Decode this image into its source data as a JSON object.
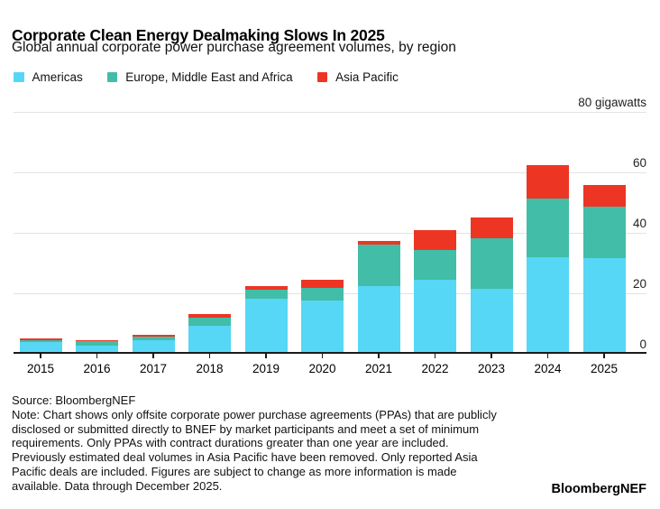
{
  "header": {
    "title": "Corporate Clean Energy Dealmaking Slows In 2025",
    "subtitle": "Global annual corporate power purchase agreement volumes, by region"
  },
  "colors": {
    "americas": "#56D7F5",
    "emea": "#42BDA7",
    "asia_pacific": "#ED3524",
    "gridline": "#e3e3e3",
    "axis": "#1a1a1a"
  },
  "legend": [
    {
      "label": "Americas",
      "color": "#56D7F5"
    },
    {
      "label": "Europe, Middle East and Africa",
      "color": "#42BDA7"
    },
    {
      "label": "Asia Pacific",
      "color": "#ED3524"
    }
  ],
  "chart_data": {
    "type": "bar",
    "stacked": true,
    "unit": "gigawatts",
    "title": "Corporate Clean Energy Dealmaking Slows In 2025",
    "xlabel": "",
    "ylabel": "gigawatts",
    "ylim": [
      0,
      80
    ],
    "grid": true,
    "legend_position": "top",
    "categories": [
      "2015",
      "2016",
      "2017",
      "2018",
      "2019",
      "2020",
      "2021",
      "2022",
      "2023",
      "2024",
      "2025"
    ],
    "series": [
      {
        "name": "Americas",
        "color": "#56D7F5",
        "values": [
          3.9,
          2.7,
          4.6,
          9.3,
          18.3,
          17.7,
          22.5,
          24.4,
          21.5,
          32.0,
          31.7
        ]
      },
      {
        "name": "Europe, Middle East and Africa",
        "color": "#42BDA7",
        "values": [
          0.7,
          1.5,
          1.1,
          2.5,
          3.0,
          4.0,
          13.5,
          9.8,
          16.6,
          19.4,
          17.1
        ]
      },
      {
        "name": "Asia Pacific",
        "color": "#ED3524",
        "values": [
          0.4,
          0.2,
          0.7,
          1.3,
          1.0,
          2.8,
          1.4,
          6.6,
          7.0,
          11.0,
          7.0
        ]
      }
    ],
    "totals": [
      5.0,
      4.4,
      6.4,
      13.1,
      22.3,
      24.5,
      37.4,
      40.8,
      45.1,
      62.4,
      55.8
    ],
    "y_axis": {
      "ticks": [
        0,
        20,
        40,
        60,
        80
      ],
      "max": 80,
      "top_label": "80 gigawatts"
    }
  },
  "footer": {
    "source": "Source: BloombergNEF",
    "note_lines": [
      "Note: Chart shows only offsite corporate power purchase agreements (PPAs) that are publicly",
      "disclosed or submitted directly to BNEF by market participants and meet a set of minimum",
      "requirements. Only PPAs with contract durations greater than one year are included.",
      "Previously estimated deal volumes in Asia Pacific have been removed. Only reported Asia",
      "Pacific deals are included. Figures are subject to change as more information is made",
      "available. Data through December 2025."
    ],
    "brand": "BloombergNEF"
  }
}
